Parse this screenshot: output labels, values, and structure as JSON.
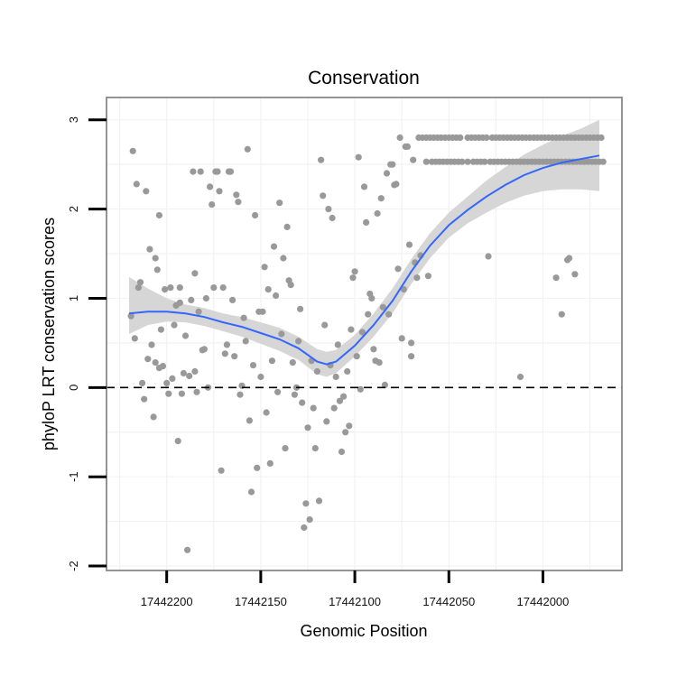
{
  "chart_data": {
    "type": "scatter",
    "title": "Conservation",
    "xlabel": "Genomic Position",
    "ylabel": "phyloP LRT conservation scores",
    "x_reversed": true,
    "xlim": [
      17442232,
      17441958
    ],
    "ylim": [
      -2.05,
      3.25
    ],
    "x_ticks": [
      17442200,
      17442150,
      17442100,
      17442050,
      17442000
    ],
    "x_tick_labels": [
      "17442200",
      "17442150",
      "17442100",
      "17442050",
      "17442000"
    ],
    "y_ticks": [
      -2,
      -1,
      0,
      1,
      2,
      3
    ],
    "y_tick_labels": [
      "-2",
      "-1",
      "0",
      "1",
      "2",
      "3"
    ],
    "grid": true,
    "reference_line": {
      "y": 0,
      "style": "dashed",
      "color": "#000000"
    },
    "colors": {
      "points": "#999999",
      "smooth_line": "#3366ff",
      "confidence_band": "#d6d6d6",
      "panel_border": "#888888",
      "grid": "#f2f2f2"
    },
    "points": [
      [
        17442219,
        0.8
      ],
      [
        17442218,
        2.65
      ],
      [
        17442217,
        0.55
      ],
      [
        17442216,
        2.28
      ],
      [
        17442215,
        1.12
      ],
      [
        17442214,
        1.18
      ],
      [
        17442213,
        0.05
      ],
      [
        17442212,
        -0.13
      ],
      [
        17442211,
        2.2
      ],
      [
        17442210,
        0.32
      ],
      [
        17442209,
        1.55
      ],
      [
        17442208,
        0.48
      ],
      [
        17442207,
        -0.33
      ],
      [
        17442206,
        1.45
      ],
      [
        17442206,
        0.28
      ],
      [
        17442205,
        1.32
      ],
      [
        17442204,
        1.93
      ],
      [
        17442204,
        0.22
      ],
      [
        17442203,
        0.65
      ],
      [
        17442202,
        0.24
      ],
      [
        17442201,
        1.1
      ],
      [
        17442200,
        0.05
      ],
      [
        17442199,
        -0.07
      ],
      [
        17442198,
        1.12
      ],
      [
        17442197,
        0.1
      ],
      [
        17442196,
        0.7
      ],
      [
        17442195,
        0.92
      ],
      [
        17442194,
        -0.6
      ],
      [
        17442193,
        0.95
      ],
      [
        17442193,
        1.12
      ],
      [
        17442192,
        -0.07
      ],
      [
        17442191,
        0.16
      ],
      [
        17442190,
        0.58
      ],
      [
        17442189,
        -1.82
      ],
      [
        17442188,
        0.13
      ],
      [
        17442187,
        0.98
      ],
      [
        17442186,
        2.42
      ],
      [
        17442185,
        0.18
      ],
      [
        17442185,
        1.28
      ],
      [
        17442184,
        -0.05
      ],
      [
        17442183,
        0.85
      ],
      [
        17442182,
        2.42
      ],
      [
        17442181,
        0.42
      ],
      [
        17442180,
        0.43
      ],
      [
        17442179,
        1.0
      ],
      [
        17442178,
        0.0
      ],
      [
        17442177,
        2.25
      ],
      [
        17442176,
        2.05
      ],
      [
        17442175,
        1.12
      ],
      [
        17442174,
        2.42
      ],
      [
        17442173,
        2.42
      ],
      [
        17442172,
        2.2
      ],
      [
        17442171,
        -0.93
      ],
      [
        17442170,
        1.12
      ],
      [
        17442169,
        0.38
      ],
      [
        17442168,
        0.48
      ],
      [
        17442167,
        2.42
      ],
      [
        17442166,
        2.42
      ],
      [
        17442165,
        0.98
      ],
      [
        17442164,
        0.35
      ],
      [
        17442163,
        2.16
      ],
      [
        17442162,
        2.08
      ],
      [
        17442161,
        -0.08
      ],
      [
        17442160,
        0.02
      ],
      [
        17442159,
        0.78
      ],
      [
        17442158,
        0.52
      ],
      [
        17442157,
        2.67
      ],
      [
        17442156,
        -0.37
      ],
      [
        17442155,
        -1.17
      ],
      [
        17442154,
        0.25
      ],
      [
        17442153,
        1.93
      ],
      [
        17442152,
        -0.9
      ],
      [
        17442151,
        0.85
      ],
      [
        17442150,
        0.12
      ],
      [
        17442149,
        0.85
      ],
      [
        17442148,
        1.35
      ],
      [
        17442147,
        -0.28
      ],
      [
        17442146,
        1.1
      ],
      [
        17442145,
        -0.85
      ],
      [
        17442144,
        0.3
      ],
      [
        17442143,
        1.58
      ],
      [
        17442142,
        1.03
      ],
      [
        17442141,
        -0.05
      ],
      [
        17442140,
        2.07
      ],
      [
        17442139,
        0.6
      ],
      [
        17442138,
        1.45
      ],
      [
        17442137,
        -0.68
      ],
      [
        17442136,
        1.8
      ],
      [
        17442135,
        1.2
      ],
      [
        17442134,
        1.15
      ],
      [
        17442133,
        0.28
      ],
      [
        17442132,
        -0.08
      ],
      [
        17442131,
        0.0
      ],
      [
        17442130,
        0.52
      ],
      [
        17442129,
        0.88
      ],
      [
        17442128,
        -0.17
      ],
      [
        17442127,
        -1.57
      ],
      [
        17442126,
        -1.3
      ],
      [
        17442125,
        -0.45
      ],
      [
        17442124,
        -1.48
      ],
      [
        17442123,
        0.3
      ],
      [
        17442122,
        -0.23
      ],
      [
        17442121,
        -0.68
      ],
      [
        17442120,
        0.18
      ],
      [
        17442119,
        -1.27
      ],
      [
        17442118,
        2.55
      ],
      [
        17442117,
        2.15
      ],
      [
        17442116,
        0.7
      ],
      [
        17442115,
        -0.38
      ],
      [
        17442114,
        2.0
      ],
      [
        17442113,
        0.25
      ],
      [
        17442112,
        1.9
      ],
      [
        17442111,
        -0.23
      ],
      [
        17442110,
        0.12
      ],
      [
        17442109,
        0.48
      ],
      [
        17442108,
        -0.15
      ],
      [
        17442107,
        -0.72
      ],
      [
        17442106,
        -0.1
      ],
      [
        17442105,
        -0.5
      ],
      [
        17442104,
        0.18
      ],
      [
        17442103,
        -0.43
      ],
      [
        17442102,
        0.65
      ],
      [
        17442101,
        1.23
      ],
      [
        17442100,
        1.3
      ],
      [
        17442099,
        0.35
      ],
      [
        17442098,
        2.58
      ],
      [
        17442097,
        -0.02
      ],
      [
        17442096,
        0.62
      ],
      [
        17442095,
        2.25
      ],
      [
        17442094,
        1.85
      ],
      [
        17442093,
        0.82
      ],
      [
        17442092,
        1.05
      ],
      [
        17442091,
        1.0
      ],
      [
        17442090,
        0.43
      ],
      [
        17442089,
        0.3
      ],
      [
        17442088,
        1.95
      ],
      [
        17442087,
        0.28
      ],
      [
        17442086,
        2.12
      ],
      [
        17442085,
        0.9
      ],
      [
        17442084,
        0.03
      ],
      [
        17442083,
        2.4
      ],
      [
        17442082,
        0.82
      ],
      [
        17442081,
        2.5
      ],
      [
        17442080,
        2.5
      ],
      [
        17442079,
        2.27
      ],
      [
        17442078,
        2.28
      ],
      [
        17442077,
        1.33
      ],
      [
        17442076,
        2.8
      ],
      [
        17442075,
        0.55
      ],
      [
        17442074,
        1.1
      ],
      [
        17442073,
        2.7
      ],
      [
        17442072,
        2.7
      ],
      [
        17442071,
        1.6
      ],
      [
        17442070,
        0.5
      ],
      [
        17442070,
        0.35
      ],
      [
        17442069,
        2.55
      ],
      [
        17442068,
        1.4
      ],
      [
        17442067,
        1.23
      ],
      [
        17442066,
        2.8
      ],
      [
        17442065,
        1.48
      ],
      [
        17442064,
        2.8
      ],
      [
        17442062,
        2.8
      ],
      [
        17442062,
        2.53
      ],
      [
        17442061,
        1.25
      ],
      [
        17442060,
        2.8
      ],
      [
        17442059,
        2.53
      ],
      [
        17442058,
        2.8
      ],
      [
        17442057,
        2.53
      ],
      [
        17442056,
        2.8
      ],
      [
        17442055,
        2.53
      ],
      [
        17442054,
        2.8
      ],
      [
        17442053,
        2.53
      ],
      [
        17442052,
        2.8
      ],
      [
        17442051,
        2.53
      ],
      [
        17442050,
        2.8
      ],
      [
        17442049,
        2.53
      ],
      [
        17442048,
        2.8
      ],
      [
        17442047,
        2.53
      ],
      [
        17442046,
        2.8
      ],
      [
        17442045,
        2.53
      ],
      [
        17442044,
        2.8
      ],
      [
        17442043,
        2.53
      ],
      [
        17442040,
        2.8
      ],
      [
        17442040,
        2.53
      ],
      [
        17442038,
        2.8
      ],
      [
        17442037,
        2.53
      ],
      [
        17442036,
        2.8
      ],
      [
        17442035,
        2.53
      ],
      [
        17442034,
        2.8
      ],
      [
        17442033,
        2.53
      ],
      [
        17442032,
        2.8
      ],
      [
        17442031,
        2.53
      ],
      [
        17442030,
        2.8
      ],
      [
        17442029,
        1.47
      ],
      [
        17442028,
        2.53
      ],
      [
        17442027,
        2.8
      ],
      [
        17442026,
        2.53
      ],
      [
        17442025,
        2.8
      ],
      [
        17442024,
        2.53
      ],
      [
        17442023,
        2.8
      ],
      [
        17442022,
        2.53
      ],
      [
        17442021,
        2.8
      ],
      [
        17442020,
        2.53
      ],
      [
        17442019,
        2.8
      ],
      [
        17442018,
        2.53
      ],
      [
        17442017,
        2.8
      ],
      [
        17442016,
        2.53
      ],
      [
        17442015,
        2.8
      ],
      [
        17442014,
        2.53
      ],
      [
        17442013,
        2.8
      ],
      [
        17442012,
        0.12
      ],
      [
        17442012,
        2.53
      ],
      [
        17442011,
        2.8
      ],
      [
        17442010,
        2.53
      ],
      [
        17442009,
        2.8
      ],
      [
        17442008,
        2.53
      ],
      [
        17442007,
        2.8
      ],
      [
        17442006,
        2.53
      ],
      [
        17442005,
        2.8
      ],
      [
        17442004,
        2.53
      ],
      [
        17442003,
        2.8
      ],
      [
        17442002,
        2.53
      ],
      [
        17442001,
        2.8
      ],
      [
        17442000,
        2.53
      ],
      [
        17441999,
        2.8
      ],
      [
        17441998,
        2.53
      ],
      [
        17441997,
        2.8
      ],
      [
        17441996,
        2.53
      ],
      [
        17441995,
        2.8
      ],
      [
        17441994,
        2.53
      ],
      [
        17441993,
        2.8
      ],
      [
        17441992,
        2.53
      ],
      [
        17441991,
        2.8
      ],
      [
        17441990,
        2.53
      ],
      [
        17441989,
        2.8
      ],
      [
        17441988,
        2.53
      ],
      [
        17441987,
        2.8
      ],
      [
        17441986,
        2.53
      ],
      [
        17441985,
        2.8
      ],
      [
        17441984,
        2.53
      ],
      [
        17441983,
        2.8
      ],
      [
        17441982,
        2.53
      ],
      [
        17441981,
        2.8
      ],
      [
        17441980,
        2.53
      ],
      [
        17441979,
        2.8
      ],
      [
        17441978,
        2.53
      ],
      [
        17441977,
        2.8
      ],
      [
        17441976,
        2.53
      ],
      [
        17441975,
        2.8
      ],
      [
        17441974,
        2.53
      ],
      [
        17441973,
        2.8
      ],
      [
        17441972,
        2.53
      ],
      [
        17441971,
        2.8
      ],
      [
        17441970,
        2.53
      ],
      [
        17441969,
        2.8
      ],
      [
        17441968,
        2.53
      ],
      [
        17441993,
        1.23
      ],
      [
        17441990,
        0.82
      ],
      [
        17441987,
        1.43
      ],
      [
        17441986,
        1.45
      ],
      [
        17441983,
        1.27
      ]
    ],
    "smooth": {
      "x": [
        17442220,
        17442210,
        17442200,
        17442190,
        17442180,
        17442170,
        17442160,
        17442150,
        17442140,
        17442130,
        17442120,
        17442115,
        17442110,
        17442100,
        17442090,
        17442080,
        17442070,
        17442060,
        17442050,
        17442040,
        17442030,
        17442020,
        17442010,
        17442000,
        17441990,
        17441980,
        17441970
      ],
      "fit": [
        0.83,
        0.85,
        0.85,
        0.83,
        0.79,
        0.73,
        0.68,
        0.61,
        0.54,
        0.44,
        0.29,
        0.26,
        0.29,
        0.47,
        0.7,
        0.97,
        1.3,
        1.59,
        1.82,
        1.99,
        2.14,
        2.27,
        2.38,
        2.46,
        2.52,
        2.56,
        2.6
      ],
      "lower": [
        0.6,
        0.7,
        0.74,
        0.73,
        0.69,
        0.63,
        0.57,
        0.49,
        0.41,
        0.31,
        0.15,
        0.12,
        0.16,
        0.35,
        0.57,
        0.83,
        1.16,
        1.45,
        1.68,
        1.84,
        1.96,
        2.07,
        2.15,
        2.2,
        2.22,
        2.22,
        2.2
      ],
      "upper": [
        1.24,
        1.11,
        1.0,
        0.93,
        0.89,
        0.83,
        0.79,
        0.73,
        0.67,
        0.57,
        0.43,
        0.4,
        0.42,
        0.59,
        0.83,
        1.11,
        1.44,
        1.73,
        1.96,
        2.14,
        2.32,
        2.47,
        2.61,
        2.72,
        2.82,
        2.9,
        3.0
      ]
    }
  }
}
